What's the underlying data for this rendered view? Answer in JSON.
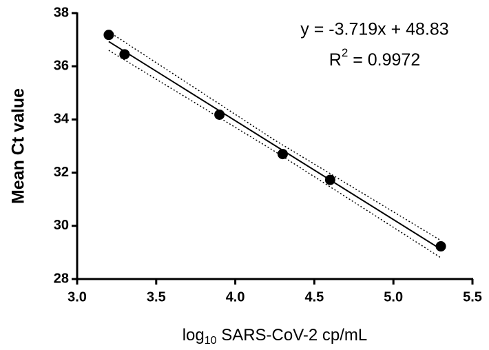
{
  "chart_data": {
    "type": "scatter",
    "x_label": {
      "base": "log",
      "sub": "10",
      "rest": " SARS-CoV-2 cp/mL"
    },
    "y_label": "Mean Ct value",
    "equation": "y = -3.719x + 48.83",
    "r_squared": {
      "base": "R",
      "sup": "2",
      "rest": " = 0.9972"
    },
    "x": [
      3.2,
      3.3,
      3.9,
      4.3,
      4.6,
      5.3
    ],
    "values": [
      37.18,
      36.45,
      34.18,
      32.7,
      31.73,
      29.23
    ],
    "color": "#000000",
    "fit": {
      "x": [
        3.2,
        5.3
      ],
      "values": [
        36.93,
        29.12
      ]
    },
    "band": {
      "x": [
        3.2,
        4.25,
        5.3
      ],
      "upper": [
        37.3,
        33.22,
        29.45
      ],
      "lower": [
        36.6,
        32.8,
        28.8
      ]
    },
    "xlim": [
      3.0,
      5.5
    ],
    "xticks": [
      {
        "value": 3,
        "label": "3.0"
      },
      {
        "value": 3.5,
        "label": "3.5"
      },
      {
        "value": 4,
        "label": "4.0"
      },
      {
        "value": 4.5,
        "label": "4.5"
      },
      {
        "value": 5,
        "label": "5.0"
      },
      {
        "value": 5.5,
        "label": "5.5"
      }
    ],
    "ylim": [
      28,
      38
    ],
    "yticks": [
      28,
      30,
      32,
      34,
      36,
      38
    ],
    "grid": false
  }
}
